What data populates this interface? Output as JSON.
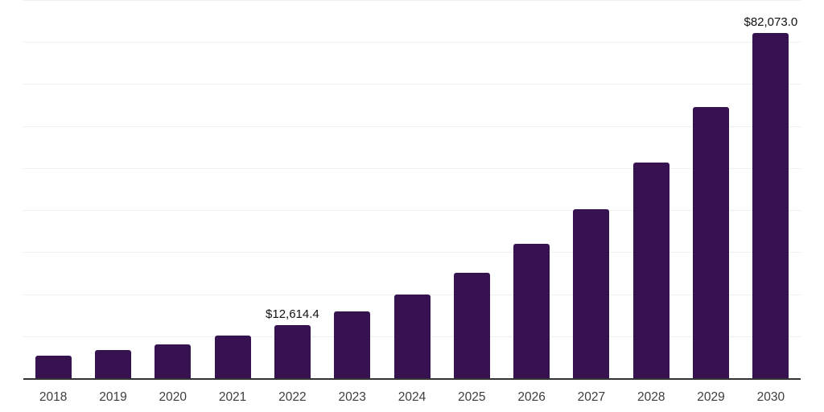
{
  "chart_data": {
    "type": "bar",
    "categories": [
      "2018",
      "2019",
      "2020",
      "2021",
      "2022",
      "2023",
      "2024",
      "2025",
      "2026",
      "2027",
      "2028",
      "2029",
      "2030"
    ],
    "values": [
      5400,
      6700,
      8100,
      10200,
      12614.4,
      15900,
      19900,
      25100,
      32000,
      40300,
      51400,
      64600,
      82073.0
    ],
    "value_labels": [
      "",
      "",
      "",
      "",
      "$12,614.4",
      "",
      "",
      "",
      "",
      "",
      "",
      "",
      "$82,073.0"
    ],
    "title": "",
    "xlabel": "",
    "ylabel": "",
    "ylim": [
      0,
      90000
    ],
    "gridline_step": 10000,
    "grid": "on",
    "legend": "none",
    "bar_color": "#361250",
    "background_color": "#ffffff",
    "gridline_color": "#efefef",
    "axis_line_color": "#333333",
    "tick_label_color": "#3d3d3d",
    "value_label_color": "#111111"
  }
}
